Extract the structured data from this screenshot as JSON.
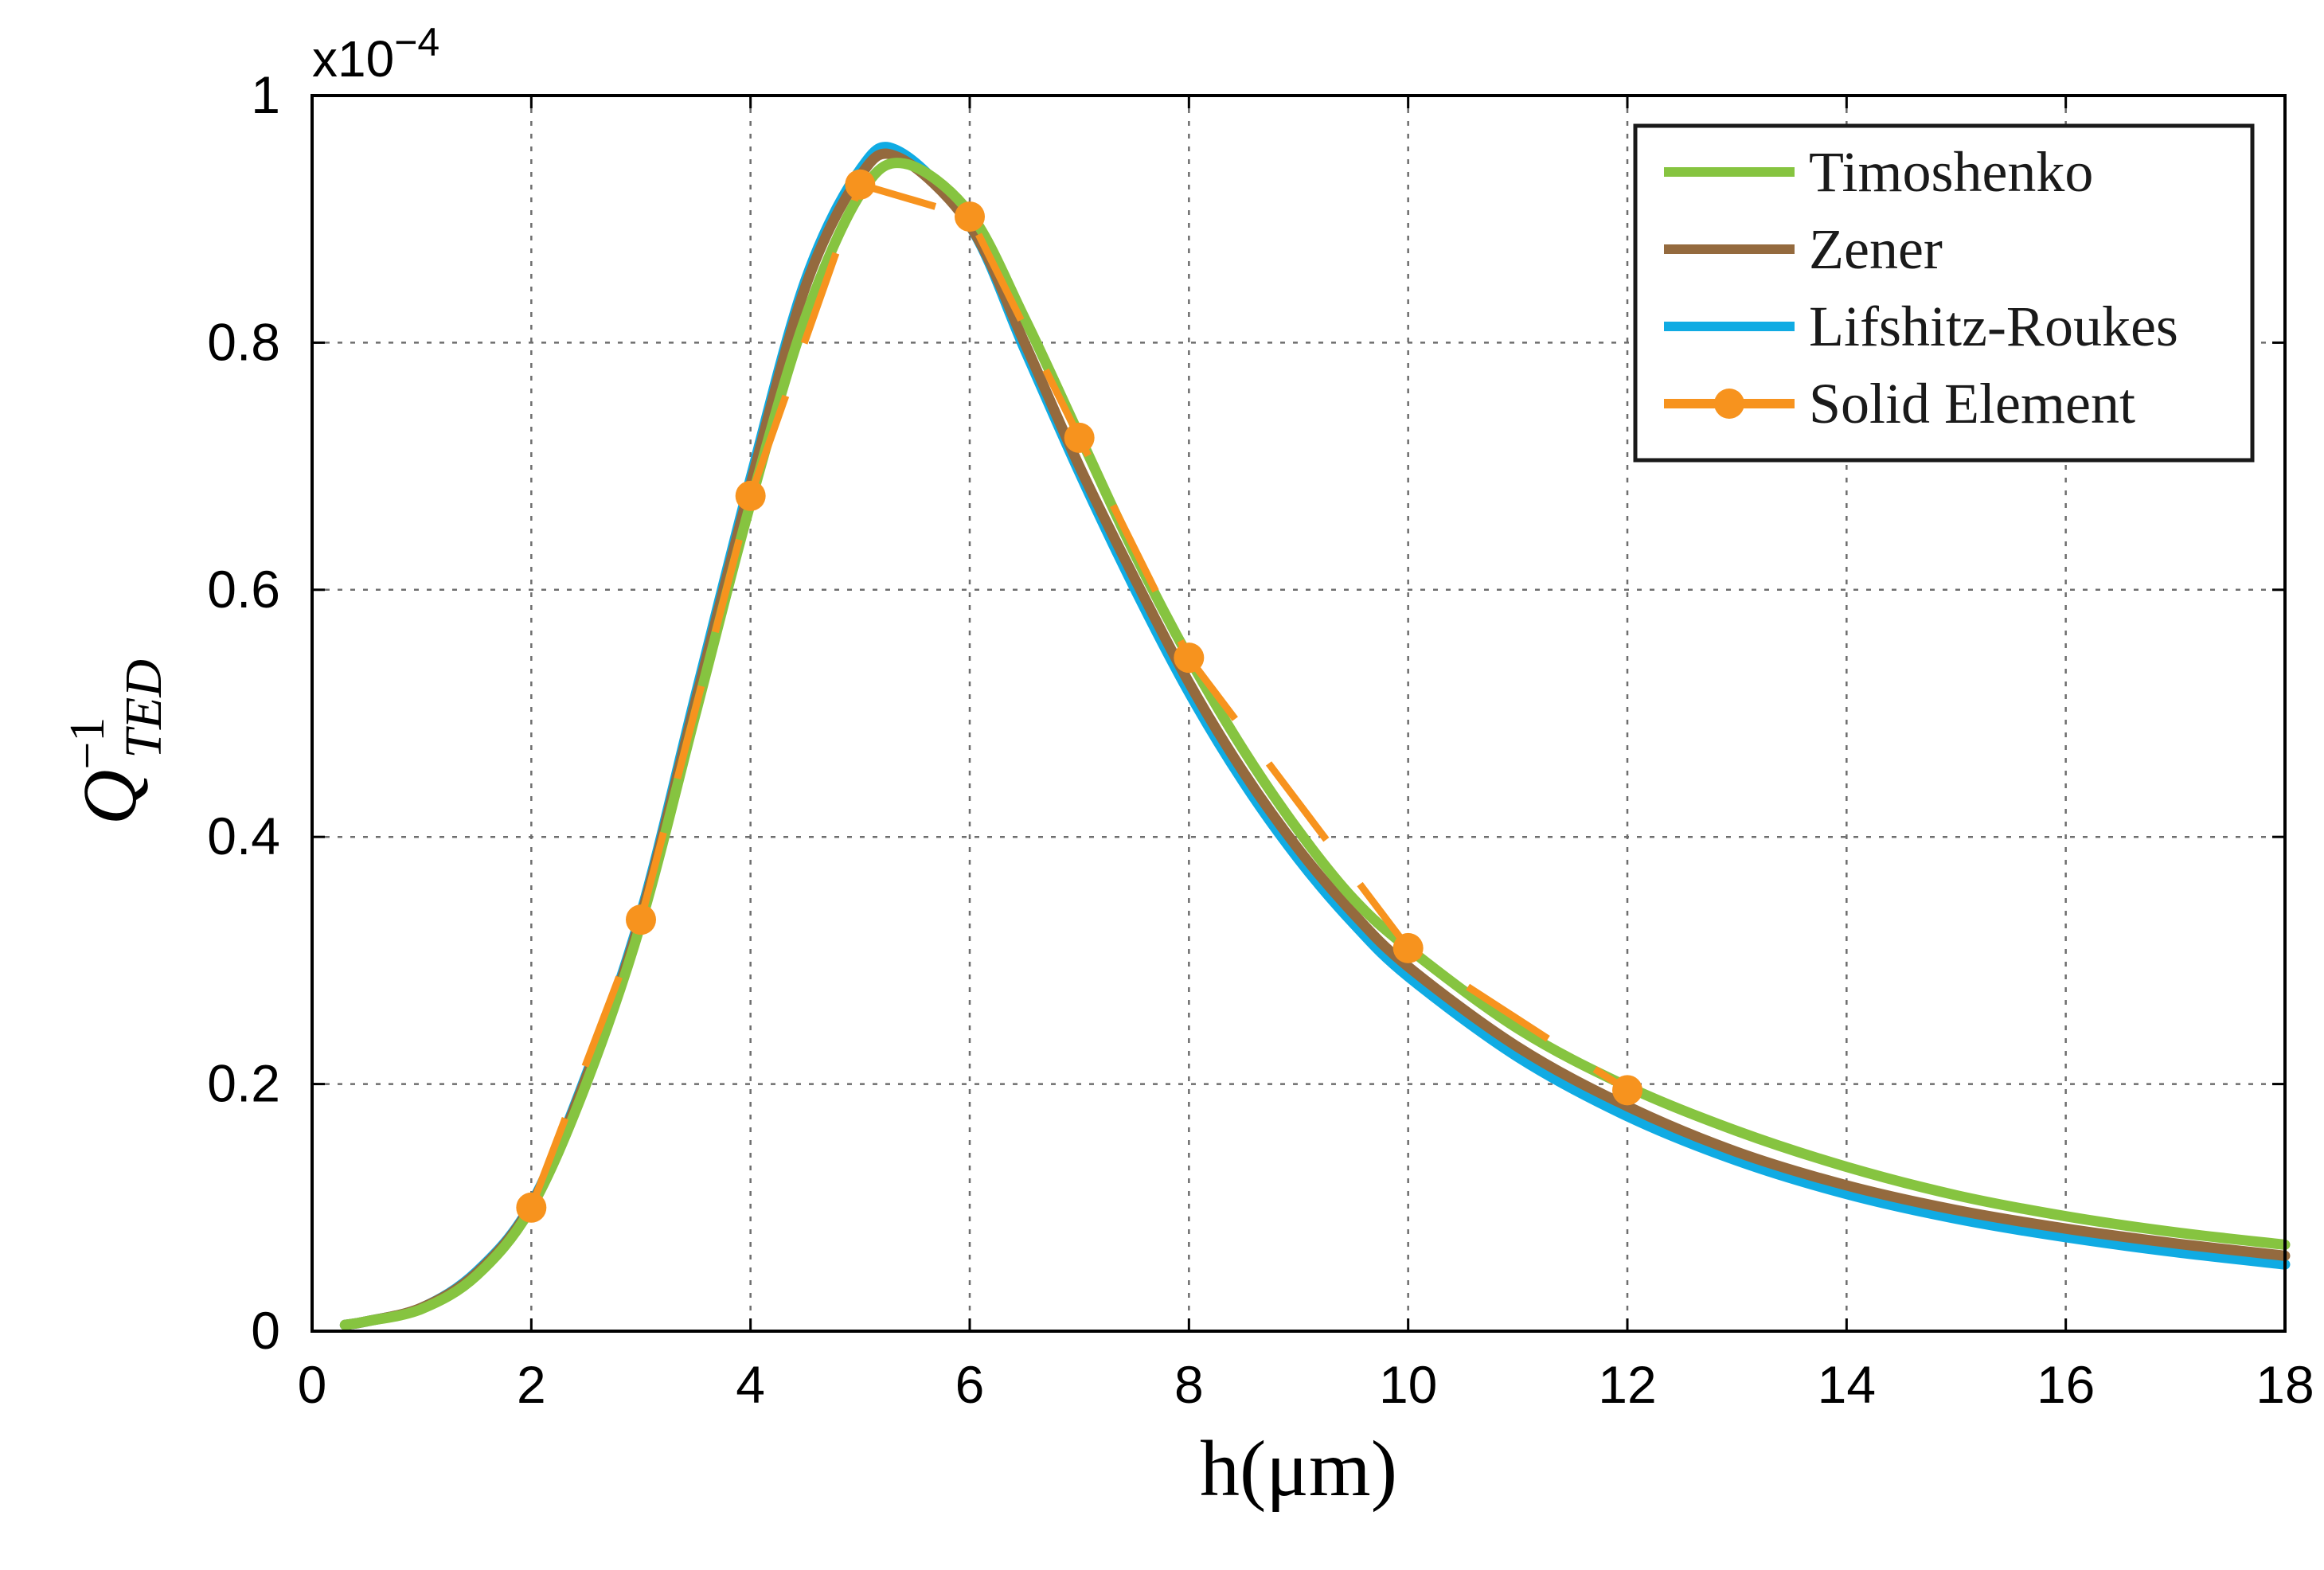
{
  "chart_data": {
    "type": "line",
    "title": "",
    "xlabel": "h(μm)",
    "ylabel": {
      "base": "Q",
      "superscript": "−1",
      "subscript": "TED"
    },
    "y_scale_label": "x10",
    "y_scale_exponent": "−4",
    "xlim": [
      0,
      18
    ],
    "ylim": [
      0,
      1
    ],
    "x_ticks": [
      0,
      2,
      4,
      6,
      8,
      10,
      12,
      14,
      16,
      18
    ],
    "x_tick_labels": [
      "0",
      "2",
      "4",
      "6",
      "8",
      "10",
      "12",
      "14",
      "16",
      "18"
    ],
    "y_ticks": [
      0,
      0.2,
      0.4,
      0.6,
      0.8,
      1
    ],
    "y_tick_labels": [
      "0",
      "0.2",
      "0.4",
      "0.6",
      "0.8",
      "1"
    ],
    "grid": true,
    "legend_position": "top-right",
    "series": [
      {
        "name": "Timoshenko",
        "color": "#86c440",
        "style": "solid",
        "x": [
          0.3,
          0.5,
          1,
          1.5,
          2,
          2.5,
          3,
          3.5,
          4,
          4.5,
          5,
          5.4,
          6,
          6.5,
          7,
          7.5,
          8,
          8.5,
          9,
          9.5,
          10,
          11,
          12,
          13,
          14,
          15,
          16,
          17,
          18
        ],
        "values": [
          0.005,
          0.008,
          0.018,
          0.045,
          0.1,
          0.2,
          0.33,
          0.5,
          0.67,
          0.82,
          0.92,
          0.945,
          0.905,
          0.82,
          0.725,
          0.63,
          0.545,
          0.47,
          0.405,
          0.35,
          0.31,
          0.245,
          0.198,
          0.162,
          0.133,
          0.11,
          0.093,
          0.08,
          0.07
        ]
      },
      {
        "name": "Zener",
        "color": "#946a3e",
        "style": "solid",
        "x": [
          0.3,
          0.5,
          1,
          1.5,
          2,
          2.5,
          3,
          3.5,
          4,
          4.5,
          5,
          5.35,
          6,
          6.5,
          7,
          7.5,
          8,
          8.5,
          9,
          9.5,
          10,
          11,
          12,
          13,
          14,
          15,
          16,
          17,
          18
        ],
        "values": [
          0.005,
          0.008,
          0.019,
          0.047,
          0.102,
          0.205,
          0.335,
          0.51,
          0.685,
          0.845,
          0.935,
          0.95,
          0.895,
          0.8,
          0.7,
          0.61,
          0.525,
          0.452,
          0.39,
          0.338,
          0.295,
          0.23,
          0.182,
          0.145,
          0.118,
          0.098,
          0.083,
          0.071,
          0.061
        ]
      },
      {
        "name": "Lifshitz-Roukes",
        "color": "#10abe3",
        "style": "solid",
        "x": [
          0.3,
          0.5,
          1,
          1.5,
          2,
          2.5,
          3,
          3.5,
          4,
          4.5,
          5,
          5.35,
          6,
          6.5,
          7,
          7.5,
          8,
          8.5,
          9,
          9.5,
          10,
          11,
          12,
          13,
          14,
          15,
          16,
          17,
          18
        ],
        "values": [
          0.005,
          0.008,
          0.019,
          0.048,
          0.103,
          0.207,
          0.338,
          0.515,
          0.69,
          0.85,
          0.94,
          0.955,
          0.895,
          0.795,
          0.695,
          0.602,
          0.517,
          0.444,
          0.382,
          0.33,
          0.287,
          0.222,
          0.174,
          0.138,
          0.111,
          0.091,
          0.076,
          0.064,
          0.054
        ]
      },
      {
        "name": "Solid Element",
        "color": "#f7931e",
        "style": "dashed",
        "marker": "circle",
        "x": [
          2,
          3,
          4,
          5,
          6,
          7,
          8,
          10,
          12
        ],
        "values": [
          0.1,
          0.333,
          0.676,
          0.928,
          0.902,
          0.723,
          0.545,
          0.31,
          0.195
        ]
      }
    ]
  }
}
